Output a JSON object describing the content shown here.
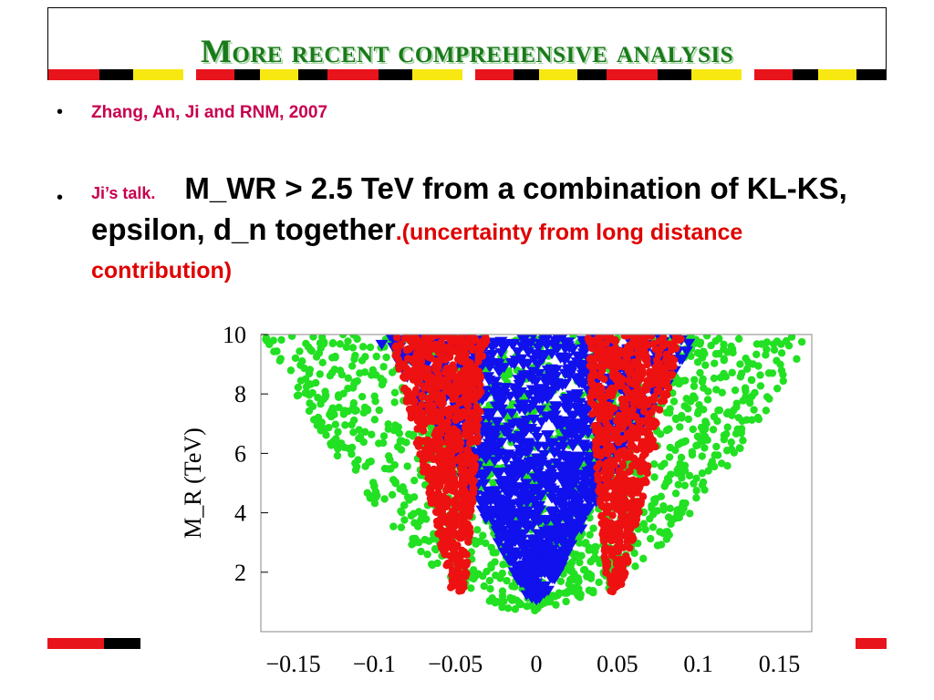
{
  "slide": {
    "title": "More recent comprehensive analysis",
    "bullet1": "Zhang, An, Ji and RNM, 2007",
    "bullet2_lead": "Ji’s talk.",
    "bullet2_main": "M_WR > 2.5 TeV from a combination of KL-KS, epsilon, d_n together",
    "bullet2_note": ".(uncertainty from long distance contribution)",
    "bullet_char": "•"
  },
  "colors": {
    "title": "#1a7a1a",
    "accent": "#c8004f",
    "note": "#e00000",
    "strip_red": "#e8141c",
    "strip_yellow": "#f7e812",
    "strip_black": "#000000",
    "strip_white": "#ffffff",
    "green_points": "#22e022",
    "blue_points": "#1111ee",
    "red_points": "#ee1111"
  },
  "chart_data": {
    "type": "scatter",
    "ylabel": "M_R (TeV)",
    "xlim": [
      -0.17,
      0.17
    ],
    "ylim": [
      0,
      10
    ],
    "x_ticks": [
      "−0.15",
      "−0.1",
      "−0.05",
      "0",
      "0.05",
      "0.1",
      "0.15"
    ],
    "x_tick_values": [
      -0.15,
      -0.1,
      -0.05,
      0,
      0.05,
      0.1,
      0.15
    ],
    "y_ticks": [
      "2",
      "4",
      "6",
      "8",
      "10"
    ],
    "y_tick_values": [
      2,
      4,
      6,
      8,
      10
    ],
    "series": [
      {
        "marker": "circle",
        "color": "#22e022",
        "region": {
          "y_min": 0.7,
          "y_max": 10,
          "x_half_width_at_top": 0.17,
          "x_half_width_at_bottom": 0.01
        }
      },
      {
        "marker": "triangle",
        "color": "#1111ee",
        "region": {
          "y_min": 1.0,
          "y_max": 10,
          "x_half_width_at_top": 0.1,
          "x_half_width_at_bottom": 0.005
        }
      },
      {
        "marker": "circle",
        "color": "#ee1111",
        "region": {
          "y_min": 1.3,
          "y_max": 10,
          "centers": [
            -0.048,
            0.048
          ],
          "center_drift_at_top": 0.012,
          "half_width_at_top": 0.03,
          "half_width_at_bottom": 0.004
        }
      }
    ]
  }
}
